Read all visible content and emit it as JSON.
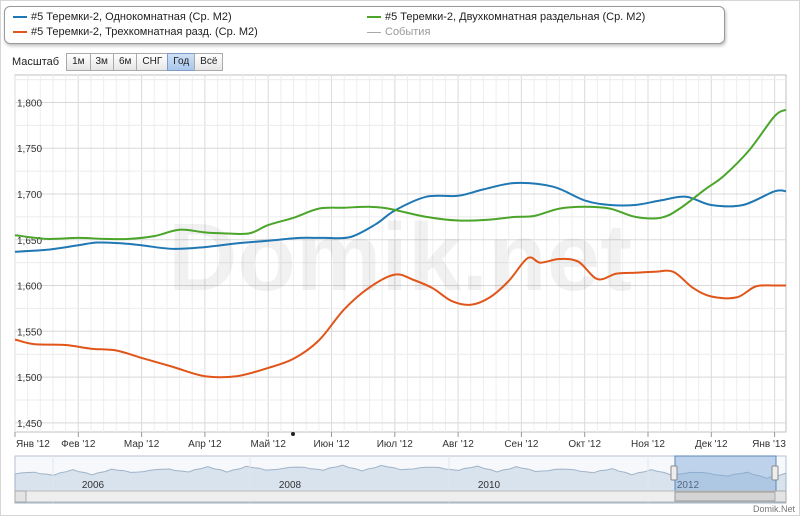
{
  "legend": {
    "items": [
      {
        "label": "#5 Теремки-2, Однокомнатная (Ср. М2)",
        "color": "#1f77b4"
      },
      {
        "label": "#5 Теремки-2, Двухкомнатная раздельная (Ср. М2)",
        "color": "#4aa52a"
      },
      {
        "label": "#5 Теремки-2, Трехкомнатная разд. (Ср. М2)",
        "color": "#e0561a"
      },
      {
        "label": "События",
        "color": "#aaaaaa"
      }
    ]
  },
  "zoom": {
    "label": "Масштаб",
    "buttons": [
      "1м",
      "3м",
      "6м",
      "СНГ",
      "Год",
      "Всё"
    ],
    "active": "Год"
  },
  "chart_data": {
    "type": "line",
    "title": "",
    "xlabel": "",
    "ylabel": "",
    "ylim": [
      1440,
      1830
    ],
    "yticks": [
      1450,
      1500,
      1550,
      1600,
      1650,
      1700,
      1750,
      1800
    ],
    "ytick_labels": [
      "1,450",
      "1,500",
      "1,550",
      "1,600",
      "1,650",
      "1,700",
      "1,750",
      "1,800"
    ],
    "xrange": [
      0,
      12.18
    ],
    "x_ticks": [
      0,
      1,
      2,
      3,
      4,
      5,
      6,
      7,
      8,
      9,
      10,
      11,
      12
    ],
    "x_labels": [
      "Янв '12",
      "Фев '12",
      "Мар '12",
      "Апр '12",
      "Май '12",
      "Июн '12",
      "Июл '12",
      "Авг '12",
      "Сен '12",
      "Окт '12",
      "Ноя '12",
      "Дек '12",
      "Янв '13"
    ],
    "grid": true,
    "series": [
      {
        "name": "#5 Теремки-2, Однокомнатная (Ср. М2)",
        "color": "#1f77b4",
        "x": [
          0,
          0.5,
          1,
          1.3,
          1.7,
          2,
          2.5,
          3,
          3.5,
          4,
          4.5,
          4.9,
          5.3,
          5.7,
          6,
          6.5,
          7,
          7.4,
          7.9,
          8.5,
          9,
          9.4,
          9.8,
          10.2,
          10.6,
          11,
          11.5,
          12,
          12.18
        ],
        "y": [
          1637,
          1639,
          1644,
          1647,
          1646,
          1644,
          1640,
          1642,
          1646,
          1649,
          1652,
          1652,
          1653,
          1667,
          1682,
          1697,
          1698,
          1705,
          1712,
          1708,
          1693,
          1688,
          1688,
          1693,
          1697,
          1688,
          1688,
          1703,
          1703
        ]
      },
      {
        "name": "#5 Теремки-2, Двухкомнатная раздельная (Ср. М2)",
        "color": "#4aa52a",
        "x": [
          0,
          0.5,
          1,
          1.4,
          1.8,
          2.2,
          2.6,
          3,
          3.3,
          3.7,
          4,
          4.4,
          4.8,
          5.2,
          5.6,
          5.9,
          6.5,
          7,
          7.5,
          7.9,
          8.2,
          8.6,
          9,
          9.4,
          9.8,
          10.2,
          10.5,
          10.9,
          11.2,
          11.6,
          12,
          12.18
        ],
        "y": [
          1655,
          1651,
          1652,
          1651,
          1651,
          1654,
          1661,
          1658,
          1657,
          1657,
          1666,
          1674,
          1684,
          1685,
          1686,
          1684,
          1675,
          1671,
          1672,
          1675,
          1676,
          1684,
          1686,
          1684,
          1675,
          1674,
          1684,
          1705,
          1720,
          1748,
          1785,
          1792
        ]
      },
      {
        "name": "#5 Теремки-2, Трехкомнатная разд. (Ср. М2)",
        "color": "#e0561a",
        "x": [
          0,
          0.3,
          0.8,
          1.2,
          1.6,
          2,
          2.5,
          3,
          3.5,
          4,
          4.4,
          4.8,
          5.2,
          5.6,
          6,
          6.3,
          6.6,
          6.9,
          7.2,
          7.5,
          7.8,
          8.1,
          8.3,
          8.6,
          8.9,
          9.2,
          9.5,
          9.8,
          10.1,
          10.4,
          10.7,
          11,
          11.4,
          11.7,
          12,
          12.18
        ],
        "y": [
          1541,
          1536,
          1535,
          1531,
          1529,
          1521,
          1511,
          1501,
          1501,
          1510,
          1520,
          1540,
          1574,
          1598,
          1612,
          1606,
          1597,
          1583,
          1579,
          1587,
          1605,
          1630,
          1625,
          1629,
          1626,
          1607,
          1613,
          1614,
          1615,
          1615,
          1598,
          1588,
          1587,
          1599,
          1600,
          1600
        ]
      }
    ]
  },
  "navigator": {
    "year_labels": [
      "2006",
      "2008",
      "2010",
      "2012"
    ]
  },
  "watermark": "Domik.net",
  "credit": "Domik.Net"
}
